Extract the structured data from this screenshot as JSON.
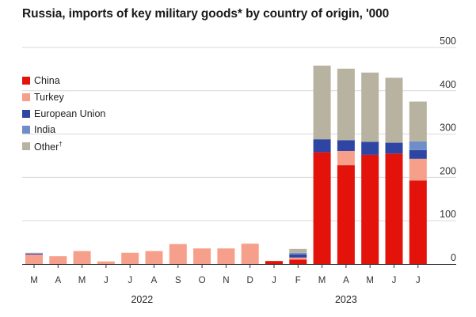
{
  "chart_data": {
    "type": "bar",
    "stacked": true,
    "title": "Russia, imports of key military goods* by country of origin, '000",
    "categories": [
      "M",
      "A",
      "M",
      "J",
      "J",
      "A",
      "S",
      "O",
      "N",
      "D",
      "J",
      "F",
      "M",
      "A",
      "M",
      "J",
      "J"
    ],
    "year_labels": [
      {
        "label": "2022",
        "start_index": 0,
        "end_index": 9
      },
      {
        "label": "2023",
        "start_index": 10,
        "end_index": 16
      }
    ],
    "series": [
      {
        "name": "China",
        "color": "#e3120b",
        "values": [
          0,
          0,
          0,
          0,
          0,
          0,
          0,
          0,
          0,
          0,
          7,
          10,
          258,
          228,
          252,
          255,
          193
        ]
      },
      {
        "name": "Turkey",
        "color": "#f6a08c",
        "values": [
          22,
          18,
          30,
          6,
          26,
          30,
          46,
          36,
          36,
          47,
          0,
          5,
          0,
          33,
          0,
          0,
          50
        ]
      },
      {
        "name": "European Union",
        "color": "#2e45a3",
        "values": [
          2,
          0,
          0,
          0,
          0,
          0,
          0,
          0,
          0,
          0,
          0,
          7,
          30,
          25,
          30,
          25,
          20
        ]
      },
      {
        "name": "India",
        "color": "#6f8dc8",
        "values": [
          1,
          0,
          0,
          0,
          0,
          0,
          0,
          0,
          0,
          0,
          0,
          4,
          0,
          0,
          0,
          0,
          20
        ]
      },
      {
        "name": "Other†",
        "color": "#b8b3a0",
        "values": [
          1,
          0,
          0,
          0,
          0,
          0,
          0,
          0,
          0,
          0,
          0,
          9,
          170,
          165,
          160,
          150,
          92
        ]
      }
    ],
    "ylim": [
      0,
      500
    ],
    "yticks": [
      0,
      100,
      200,
      300,
      400,
      500
    ],
    "grid": true,
    "legend_position": "left"
  }
}
